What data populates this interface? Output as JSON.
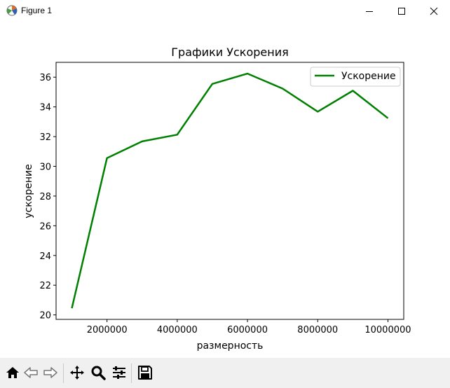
{
  "window": {
    "title": "Figure 1",
    "icons": [
      "matplotlib-icon",
      "minimize-icon",
      "maximize-icon",
      "close-icon"
    ]
  },
  "chart_data": {
    "type": "line",
    "title": "Графики Ускорения",
    "xlabel": "размерность",
    "ylabel": "ускорение",
    "x": [
      1000000,
      2000000,
      3000000,
      4000000,
      5000000,
      6000000,
      7000000,
      8000000,
      9000000,
      10000000
    ],
    "xlim": [
      550000,
      10450000
    ],
    "ylim": [
      19.7,
      37.0
    ],
    "xticks": [
      2000000,
      4000000,
      6000000,
      8000000,
      10000000
    ],
    "xtick_labels": [
      "2000000",
      "4000000",
      "6000000",
      "8000000",
      "10000000"
    ],
    "yticks": [
      20,
      22,
      24,
      26,
      28,
      30,
      32,
      34,
      36
    ],
    "ytick_labels": [
      "20",
      "22",
      "24",
      "26",
      "28",
      "30",
      "32",
      "34",
      "36"
    ],
    "series": [
      {
        "name": "Ускорение",
        "color": "#008000",
        "values": [
          20.45,
          30.55,
          31.68,
          32.13,
          35.55,
          36.24,
          35.23,
          33.68,
          35.09,
          33.24
        ]
      }
    ],
    "grid": false,
    "legend": "top-right"
  },
  "toolbar": {
    "icons": [
      "home-icon",
      "back-icon",
      "forward-icon",
      "pan-icon",
      "zoom-icon",
      "configure-subplots-icon",
      "save-icon"
    ]
  }
}
